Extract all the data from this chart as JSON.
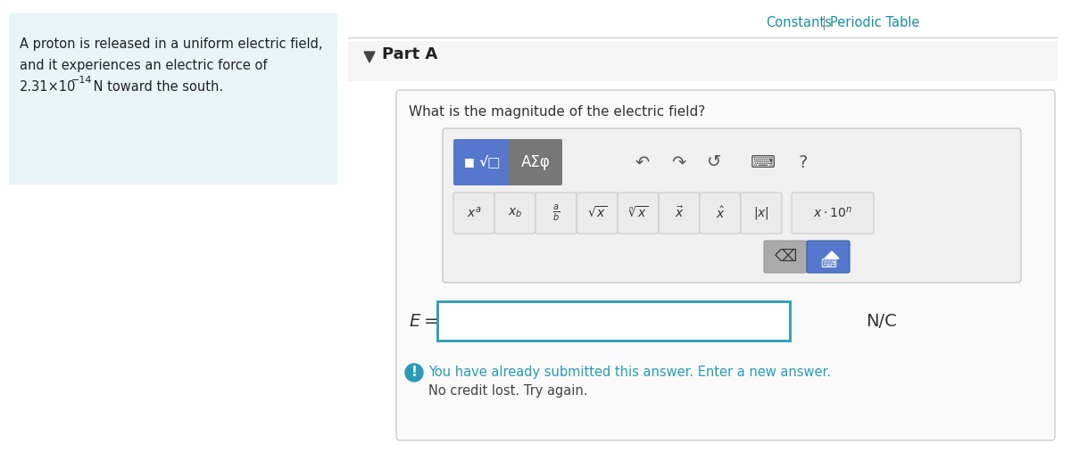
{
  "bg_color": "#ffffff",
  "left_panel_bg": "#e8f4f8",
  "link_color": "#1a8fa0",
  "part_a_text": "Part A",
  "question_text": "What is the magnitude of the electric field?",
  "eq_label": "E =",
  "unit_label": "N/C",
  "submitted_msg": "You have already submitted this answer. Enter a new answer.",
  "no_credit_msg": "No credit lost. Try again.",
  "input_border_color": "#2a9bb5",
  "btn_blue_bg": "#5577cc",
  "btn_gray_bg": "#777777",
  "btn_light_bg": "#ebebeb",
  "btn_light_border": "#cccccc",
  "info_icon_color": "#2a9bb5",
  "separator_color": "#cccccc",
  "part_a_bg": "#f5f5f5",
  "outer_panel_bg": "#fafafa",
  "outer_panel_border": "#cccccc",
  "toolbar_bg": "#f0f0f0",
  "toolbar_border": "#c8c8c8"
}
